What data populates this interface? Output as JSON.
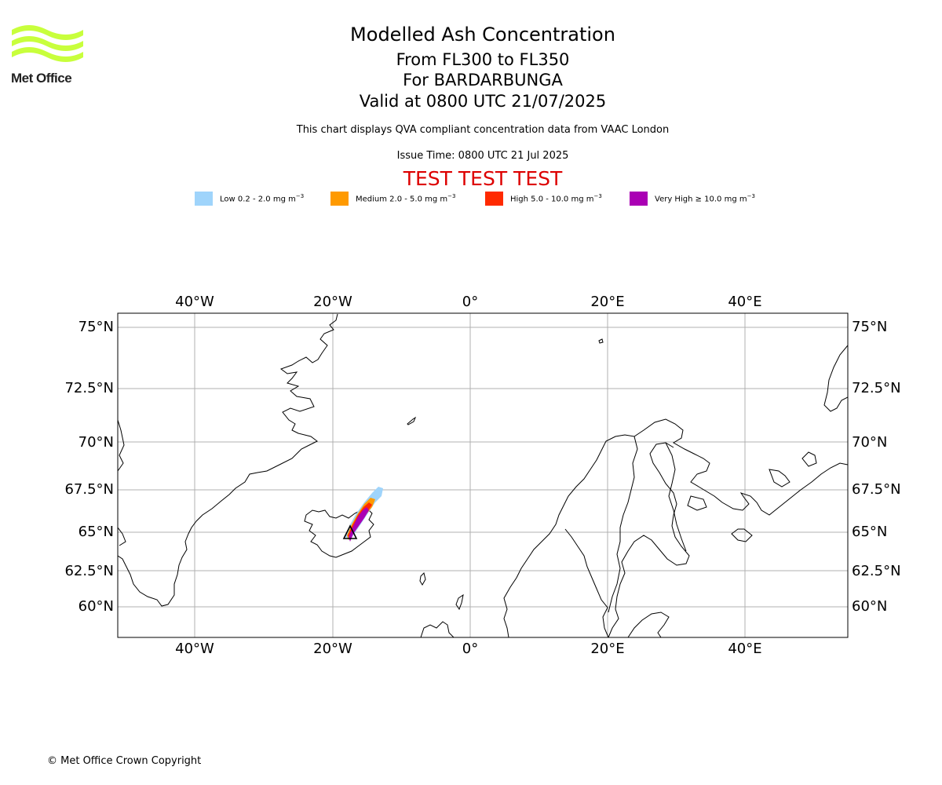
{
  "logo": {
    "text": "Met Office",
    "wave_color": "#c8ff3c"
  },
  "header": {
    "title": "Modelled Ash Concentration",
    "levels": "From FL300 to FL350",
    "volcano": "For BARDARBUNGA",
    "valid": "Valid at 0800 UTC 21/07/2025",
    "description": "This chart displays QVA compliant concentration data from VAAC London",
    "issue_time": "Issue Time: 0800 UTC 21 Jul 2025",
    "test_banner": "TEST TEST TEST"
  },
  "legend": [
    {
      "label": "Low 0.2 - 2.0 mg m",
      "unit_sup": "−3",
      "color": "#9fd4fb"
    },
    {
      "label": "Medium 2.0 - 5.0 mg m",
      "unit_sup": "−3",
      "color": "#ff9a00"
    },
    {
      "label": "High 5.0 - 10.0 mg m",
      "unit_sup": "−3",
      "color": "#ff2a00"
    },
    {
      "label": "Very High  ≥  10.0 mg m",
      "unit_sup": "−3",
      "color": "#aa00b4"
    }
  ],
  "map": {
    "lon_ticks": [
      "40°W",
      "20°W",
      "0°",
      "20°E",
      "40°E"
    ],
    "lat_ticks": [
      "75°N",
      "72.5°N",
      "70°N",
      "67.5°N",
      "65°N",
      "62.5°N",
      "60°N"
    ],
    "grid": true,
    "volcano_marker": "triangle-icon"
  },
  "footer": {
    "copyright": "© Met Office Crown Copyright"
  }
}
